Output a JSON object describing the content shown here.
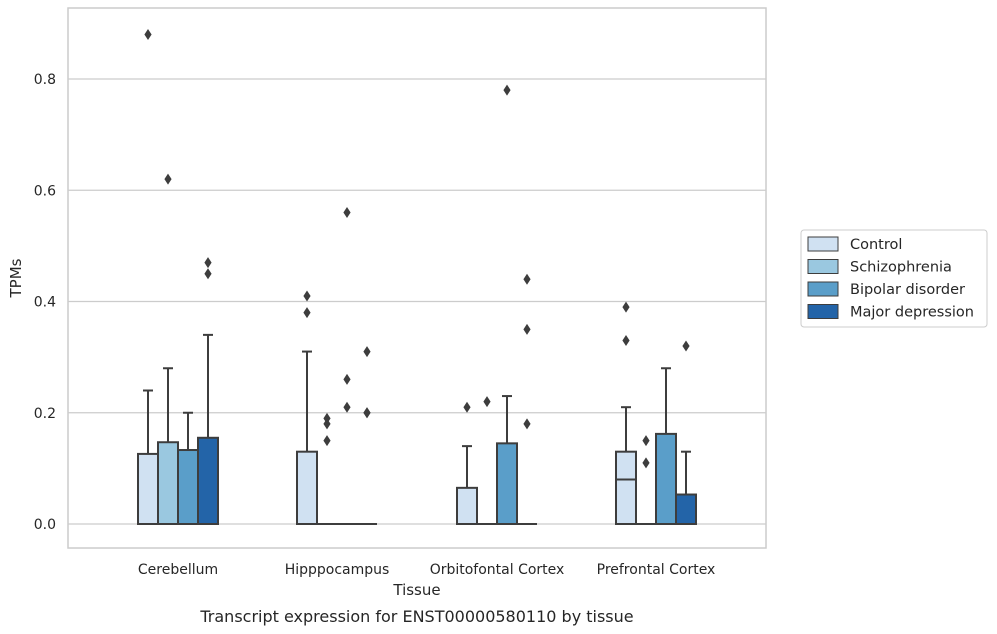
{
  "chart_data": {
    "type": "box",
    "xlabel": "Tissue",
    "ylabel": "TPMs",
    "caption": "Transcript expression for ENST00000580110 by tissue",
    "ylim": [
      -0.043,
      0.93
    ],
    "yticks": [
      0.0,
      0.2,
      0.4,
      0.6,
      0.8
    ],
    "ytick_labels": [
      "0.0",
      "0.2",
      "0.4",
      "0.6",
      "0.8"
    ],
    "grid": "horizontal",
    "legend_position": "right",
    "categories": [
      "Cerebellum",
      "Hipppocampus",
      "Orbitofontal Cortex",
      "Prefrontal Cortex"
    ],
    "series": [
      {
        "name": "Control",
        "color": "#d0e1f2",
        "boxes": [
          {
            "q1": 0.0,
            "median": 0.0,
            "q3": 0.126,
            "whisker_low": 0.0,
            "whisker_high": 0.24,
            "outliers": [
              0.88
            ]
          },
          {
            "q1": 0.0,
            "median": 0.0,
            "q3": 0.13,
            "whisker_low": 0.0,
            "whisker_high": 0.31,
            "outliers": [
              0.38,
              0.41
            ]
          },
          {
            "q1": 0.0,
            "median": 0.0,
            "q3": 0.065,
            "whisker_low": 0.0,
            "whisker_high": 0.14,
            "outliers": [
              0.21
            ]
          },
          {
            "q1": 0.0,
            "median": 0.08,
            "q3": 0.13,
            "whisker_low": 0.0,
            "whisker_high": 0.21,
            "outliers": [
              0.33,
              0.39
            ]
          }
        ]
      },
      {
        "name": "Schizophrenia",
        "color": "#9ac8e0",
        "boxes": [
          {
            "q1": 0.0,
            "median": 0.0,
            "q3": 0.147,
            "whisker_low": 0.0,
            "whisker_high": 0.28,
            "outliers": [
              0.62
            ]
          },
          {
            "q1": 0.0,
            "median": 0.0,
            "q3": 0.0,
            "whisker_low": 0.0,
            "whisker_high": 0.0,
            "outliers": [
              0.15,
              0.18,
              0.19
            ]
          },
          {
            "q1": 0.0,
            "median": 0.0,
            "q3": 0.0,
            "whisker_low": 0.0,
            "whisker_high": 0.0,
            "outliers": [
              0.22
            ]
          },
          {
            "q1": 0.0,
            "median": 0.0,
            "q3": 0.0,
            "whisker_low": 0.0,
            "whisker_high": 0.0,
            "outliers": [
              0.11,
              0.15
            ]
          }
        ]
      },
      {
        "name": "Bipolar disorder",
        "color": "#5a9ec9",
        "boxes": [
          {
            "q1": 0.0,
            "median": 0.0,
            "q3": 0.133,
            "whisker_low": 0.0,
            "whisker_high": 0.2,
            "outliers": []
          },
          {
            "q1": 0.0,
            "median": 0.0,
            "q3": 0.0,
            "whisker_low": 0.0,
            "whisker_high": 0.0,
            "outliers": [
              0.21,
              0.26,
              0.56
            ]
          },
          {
            "q1": 0.0,
            "median": 0.0,
            "q3": 0.145,
            "whisker_low": 0.0,
            "whisker_high": 0.23,
            "outliers": [
              0.78
            ]
          },
          {
            "q1": 0.0,
            "median": 0.0,
            "q3": 0.162,
            "whisker_low": 0.0,
            "whisker_high": 0.28,
            "outliers": []
          }
        ]
      },
      {
        "name": "Major depression",
        "color": "#2364a8",
        "boxes": [
          {
            "q1": 0.0,
            "median": 0.0,
            "q3": 0.155,
            "whisker_low": 0.0,
            "whisker_high": 0.34,
            "outliers": [
              0.45,
              0.47
            ]
          },
          {
            "q1": 0.0,
            "median": 0.0,
            "q3": 0.0,
            "whisker_low": 0.0,
            "whisker_high": 0.0,
            "outliers": [
              0.2,
              0.2,
              0.31
            ]
          },
          {
            "q1": 0.0,
            "median": 0.0,
            "q3": 0.0,
            "whisker_low": 0.0,
            "whisker_high": 0.0,
            "outliers": [
              0.18,
              0.35,
              0.44
            ]
          },
          {
            "q1": 0.0,
            "median": 0.0,
            "q3": 0.053,
            "whisker_low": 0.0,
            "whisker_high": 0.13,
            "outliers": [
              0.32
            ]
          }
        ]
      }
    ]
  }
}
